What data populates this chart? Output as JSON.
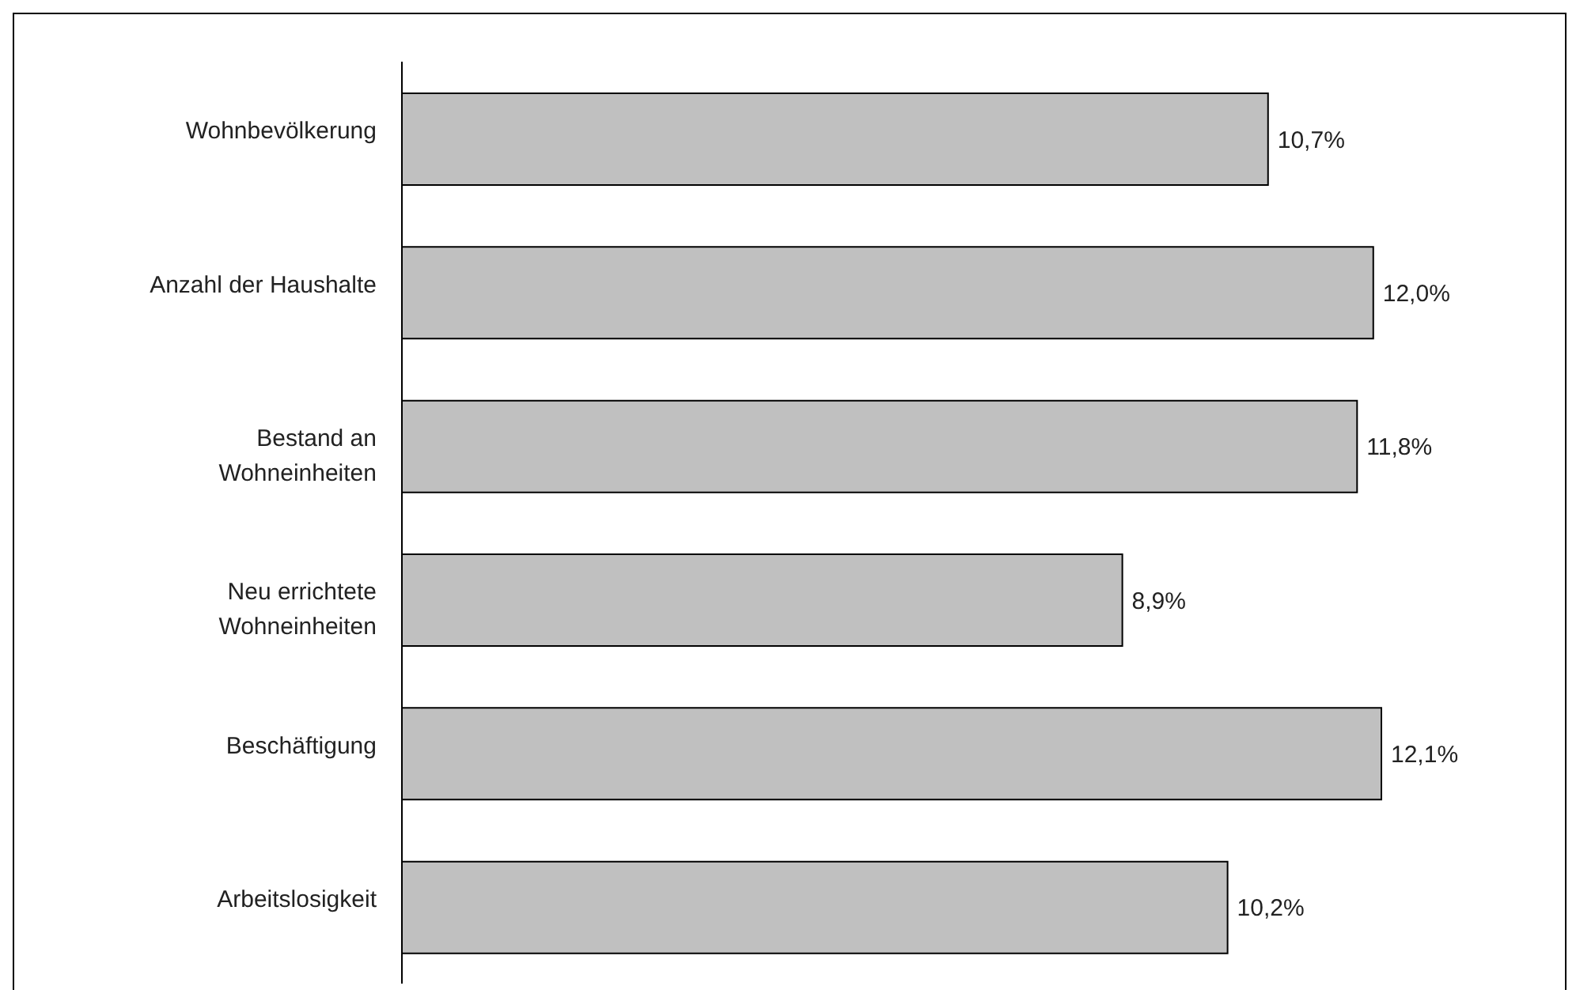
{
  "chart_data": {
    "type": "bar",
    "orientation": "horizontal",
    "categories": [
      "Wohnbevölkerung",
      "Anzahl der Haushalte",
      "Bestand an Wohneinheiten",
      "Neu errichtete Wohneinheiten",
      "Beschäftigung",
      "Arbeitslosigkeit"
    ],
    "values": [
      10.7,
      12.0,
      11.8,
      8.9,
      12.1,
      10.2
    ],
    "value_labels": [
      "10,7%",
      "12,0%",
      "11,8%",
      "8,9%",
      "12,1%",
      "10,2%"
    ],
    "color": "#c0c0c0",
    "grid": false,
    "tick_labels": "y"
  }
}
